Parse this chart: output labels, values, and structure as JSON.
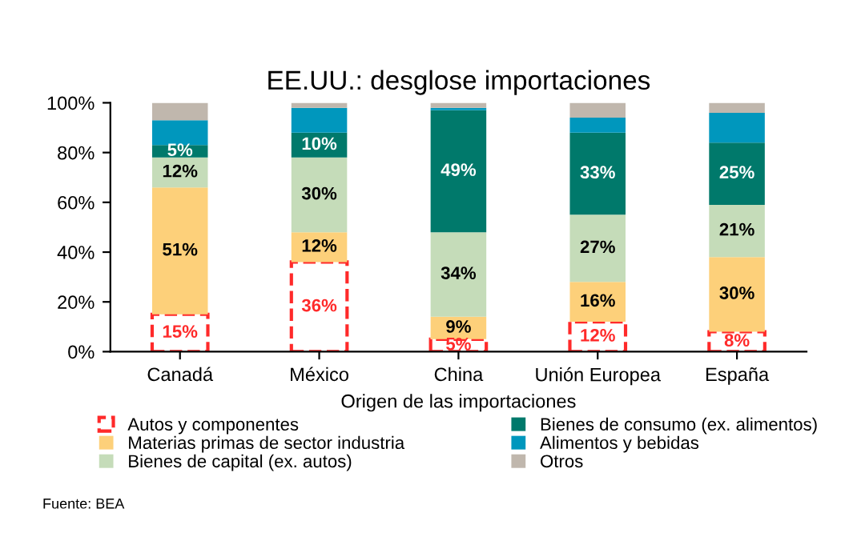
{
  "chart_data": {
    "type": "bar",
    "stacked": true,
    "title": "EE.UU.: desglose importaciones",
    "xlabel": "Origen de las importaciones",
    "categories": [
      "Canadá",
      "México",
      "China",
      "Unión Europea",
      "España"
    ],
    "series": [
      {
        "name": "Autos y componentes",
        "color": "#ff2a2a",
        "line_style": "dashed",
        "values": [
          15,
          36,
          5,
          12,
          8
        ],
        "value_labels": [
          "15%",
          "36%",
          "5%",
          "12%",
          "8%"
        ]
      },
      {
        "name": "Materias primas de sector industria",
        "color": "#fdd07a",
        "values": [
          51,
          12,
          9,
          16,
          30
        ],
        "value_labels": [
          "51%",
          "12%",
          "9%",
          "16%",
          "30%"
        ]
      },
      {
        "name": "Bienes de capital (ex. autos)",
        "color": "#c5dcb9",
        "values": [
          12,
          30,
          34,
          27,
          21
        ],
        "value_labels": [
          "12%",
          "30%",
          "34%",
          "27%",
          "21%"
        ]
      },
      {
        "name": "Bienes de consumo (ex. alimentos)",
        "color": "#00796b",
        "values": [
          5,
          10,
          49,
          33,
          25
        ],
        "value_labels": [
          "5%",
          "10%",
          "49%",
          "33%",
          "25%"
        ]
      },
      {
        "name": "Alimentos y bebidas",
        "color": "#0097bd",
        "values": [
          10,
          10,
          1,
          6,
          12
        ]
      },
      {
        "name": "Otros",
        "color": "#c0b7ad",
        "values": [
          7,
          2,
          2,
          6,
          4
        ]
      }
    ],
    "ylim": [
      0,
      100
    ],
    "yticks": [
      {
        "value": 0,
        "label": "0%"
      },
      {
        "value": 20,
        "label": "20%"
      },
      {
        "value": 40,
        "label": "40%"
      },
      {
        "value": 60,
        "label": "60%"
      },
      {
        "value": 80,
        "label": "80%"
      },
      {
        "value": 100,
        "label": "100%"
      }
    ],
    "grid": false,
    "legend": "bottom",
    "annotations": [
      "Fuente: BEA"
    ]
  }
}
